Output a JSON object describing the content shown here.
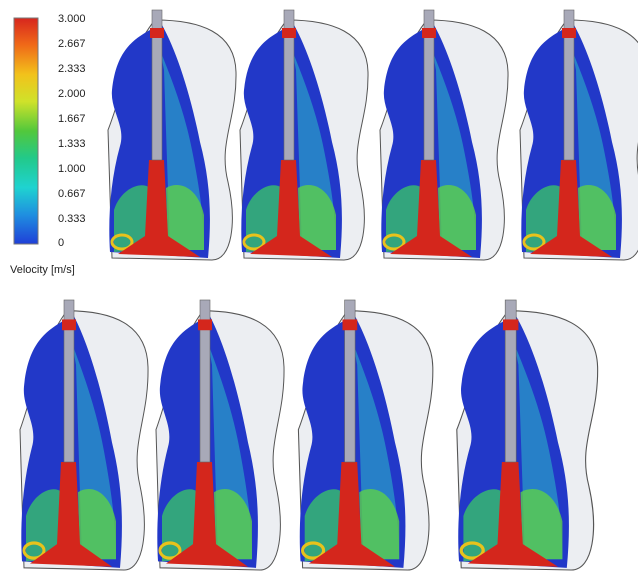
{
  "legend": {
    "ticks": [
      "3.000",
      "2.667",
      "2.333",
      "2.000",
      "1.667",
      "1.333",
      "1.000",
      "0.667",
      "0.333",
      "0"
    ],
    "title": "Velocity [m/s]"
  }
}
